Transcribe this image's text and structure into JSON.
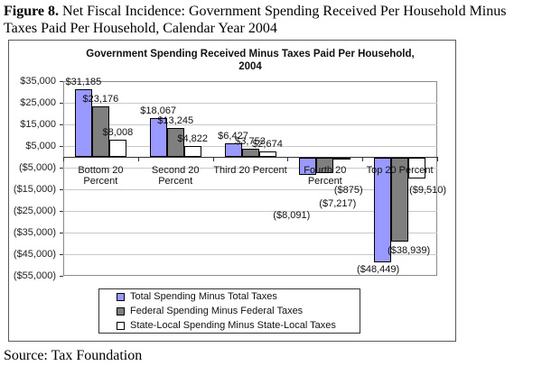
{
  "figure_caption": {
    "label": "Figure 8.",
    "text": " Net Fiscal Incidence: Government Spending Received Per Household Minus Taxes Paid Per Household, Calendar Year 2004"
  },
  "source": "Source: Tax Foundation",
  "chart_data": {
    "type": "bar",
    "title_line1": "Government Spending Received Minus Taxes Paid Per Household,",
    "title_line2": "2004",
    "categories": [
      [
        "Bottom 20",
        "Percent"
      ],
      [
        "Second 20",
        "Percent"
      ],
      [
        "Third 20 Percent"
      ],
      [
        "Fourth 20",
        "Percent"
      ],
      [
        "Top 20 Percent"
      ]
    ],
    "series": [
      {
        "name": "Total Spending Minus Total Taxes",
        "color": "#9999ff",
        "values": [
          31185,
          18067,
          6427,
          -8091,
          -48449
        ],
        "labels": [
          "$31,185",
          "$18,067",
          "$6,427",
          "($8,091)",
          "($48,449)"
        ]
      },
      {
        "name": "Federal Spending Minus Federal Taxes",
        "color": "#7f7f7f",
        "values": [
          23176,
          13245,
          3753,
          -7217,
          -38939
        ],
        "labels": [
          "$23,176",
          "$13,245",
          "$3,753",
          "($7,217)",
          "($38,939)"
        ]
      },
      {
        "name": "State-Local Spending Minus State-Local Taxes",
        "color": "#ffffff",
        "values": [
          8008,
          4822,
          2674,
          -875,
          -9510
        ],
        "labels": [
          "$8,008",
          "$4,822",
          "$2,674",
          "($875)",
          "($9,510)"
        ]
      }
    ],
    "y_axis": {
      "min": -55000,
      "max": 35000,
      "tick_step": 10000,
      "tick_labels": [
        "$35,000",
        "$25,000",
        "$15,000",
        "$5,000",
        "($5,000)",
        "($15,000)",
        "($25,000)",
        "($35,000)",
        "($45,000)",
        "($55,000)"
      ]
    },
    "grid": true,
    "legend_position": "bottom"
  }
}
